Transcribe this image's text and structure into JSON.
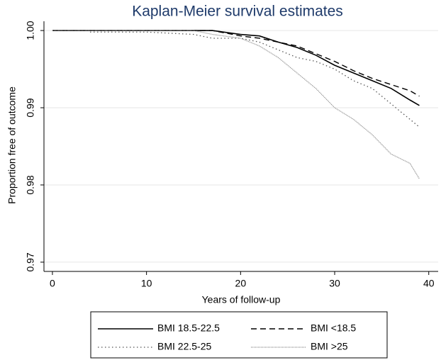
{
  "chart_data": {
    "type": "line",
    "title": "Kaplan-Meier survival estimates",
    "x_label": "Years of follow-up",
    "y_label": "Proportion free of outcome",
    "x": [
      0,
      4,
      10,
      15,
      17,
      20,
      22,
      24,
      26,
      28,
      30,
      32,
      34,
      36,
      38,
      39
    ],
    "series": [
      {
        "name": "BMI 18.5-22.5",
        "color": "#000000",
        "width": 1.6,
        "values": [
          1,
          1,
          1,
          1,
          1,
          0.9995,
          0.9993,
          0.9985,
          0.9978,
          0.9968,
          0.9955,
          0.9945,
          0.9935,
          0.9925,
          0.991,
          0.9903
        ]
      },
      {
        "name": "BMI <18.5",
        "color": "#000000",
        "width": 1.4,
        "dash": "8 5",
        "values": [
          1,
          1,
          1,
          1,
          1,
          0.9993,
          0.999,
          0.9985,
          0.998,
          0.997,
          0.996,
          0.9948,
          0.9938,
          0.993,
          0.9922,
          0.9915
        ]
      },
      {
        "name": "BMI 22.5-25",
        "color": "#555555",
        "width": 1.3,
        "dash": "1.5 3.5",
        "values": [
          null,
          0.9998,
          0.9998,
          0.9995,
          0.999,
          0.999,
          0.9985,
          0.9975,
          0.9965,
          0.996,
          0.995,
          0.9935,
          0.9925,
          0.9905,
          0.9885,
          0.9875
        ]
      },
      {
        "name": "BMI >25",
        "color": "#8a8a8a",
        "width": 1.3,
        "dash": "1 1",
        "values": [
          1,
          1,
          1,
          1,
          0.9995,
          0.999,
          0.998,
          0.9965,
          0.9945,
          0.9925,
          0.99,
          0.9885,
          0.9865,
          0.984,
          0.9828,
          0.9808
        ]
      }
    ],
    "xlim": [
      -0.9,
      41
    ],
    "ylim": [
      0.9688,
      1.0012
    ],
    "xticks": [
      0,
      10,
      20,
      30,
      40
    ],
    "yticks": [
      {
        "value": 1,
        "label": "1.00"
      },
      0.99,
      0.98,
      0.97
    ],
    "grid": true
  }
}
